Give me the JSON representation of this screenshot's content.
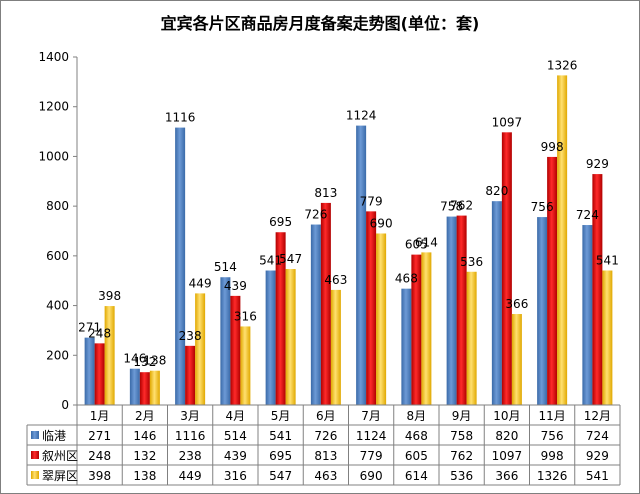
{
  "chart_data": {
    "type": "bar",
    "title": "宜宾各片区商品房月度备案走势图(单位：套)",
    "categories": [
      "1月",
      "2月",
      "3月",
      "4月",
      "5月",
      "6月",
      "7月",
      "8月",
      "9月",
      "10月",
      "11月",
      "12月"
    ],
    "ylim": [
      0,
      1400
    ],
    "yticks": [
      0,
      200,
      400,
      600,
      800,
      1000,
      1200,
      1400
    ],
    "grid": false,
    "legend": "data-table-left",
    "series": [
      {
        "name": "临港",
        "color": "#4a7ebb",
        "values": [
          271,
          146,
          1116,
          514,
          541,
          726,
          1124,
          468,
          758,
          820,
          756,
          724
        ]
      },
      {
        "name": "叙州区",
        "color": "#cc0000",
        "values": [
          248,
          132,
          238,
          439,
          695,
          813,
          779,
          605,
          762,
          1097,
          998,
          929
        ]
      },
      {
        "name": "翠屏区",
        "color": "#f2c12e",
        "values": [
          398,
          138,
          449,
          316,
          547,
          463,
          690,
          614,
          536,
          366,
          1326,
          541
        ]
      }
    ]
  }
}
